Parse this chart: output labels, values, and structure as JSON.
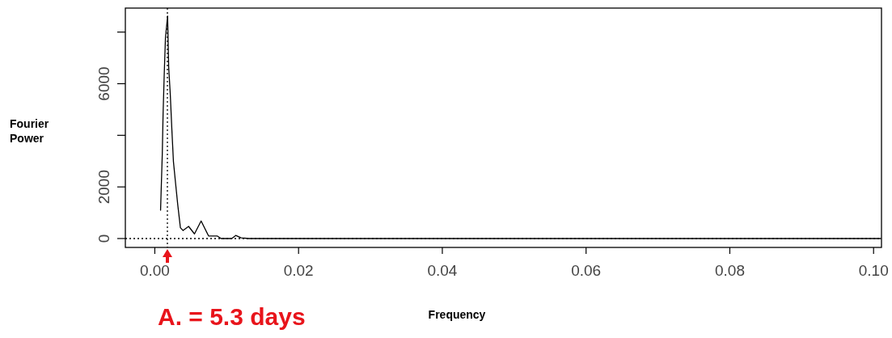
{
  "chart_data": {
    "type": "line",
    "xlabel": "Frequency",
    "ylabel": "Fourier Power",
    "x": [
      0.0008,
      0.00104,
      0.00115,
      0.0013,
      0.00148,
      0.00178,
      0.00193,
      0.00215,
      0.00237,
      0.00259,
      0.00289,
      0.00319,
      0.00356,
      0.00393,
      0.0047,
      0.00552,
      0.00644,
      0.00748,
      0.00867,
      0.00922,
      0.0107,
      0.01126,
      0.012,
      0.0131,
      0.101
    ],
    "series": [
      {
        "color": "#000000",
        "values": [
          1100,
          3290,
          4810,
          6270,
          7780,
          8620,
          6640,
          5590,
          4230,
          2980,
          2140,
          1310,
          420,
          310,
          470,
          180,
          680,
          100,
          100,
          0,
          0,
          120,
          30,
          0,
          0
        ]
      }
    ],
    "xlim": [
      -0.0041,
      0.1011
    ],
    "ylim": [
      -345,
      8930
    ],
    "xticks": [
      {
        "value": 0,
        "label": "0.00"
      },
      {
        "value": 0.02,
        "label": "0.02"
      },
      {
        "value": 0.04,
        "label": "0.04"
      },
      {
        "value": 0.06,
        "label": "0.06"
      },
      {
        "value": 0.08,
        "label": "0.08"
      },
      {
        "value": 0.1,
        "label": "0.10"
      }
    ],
    "yticks": [
      0,
      2000,
      {
        "value": 4000,
        "label": null
      },
      6000,
      {
        "value": 8000,
        "label": null
      }
    ],
    "ref_lines": [
      {
        "axis": "x",
        "value": 0.00175,
        "line_style": "dotted",
        "color": "#000000"
      },
      {
        "axis": "y",
        "value": 0,
        "line_style": "dotted",
        "color": "#000000"
      }
    ],
    "annotations": [
      "A. = 5.3 days"
    ],
    "grid": false,
    "marker": "none",
    "line_style": "solid"
  }
}
